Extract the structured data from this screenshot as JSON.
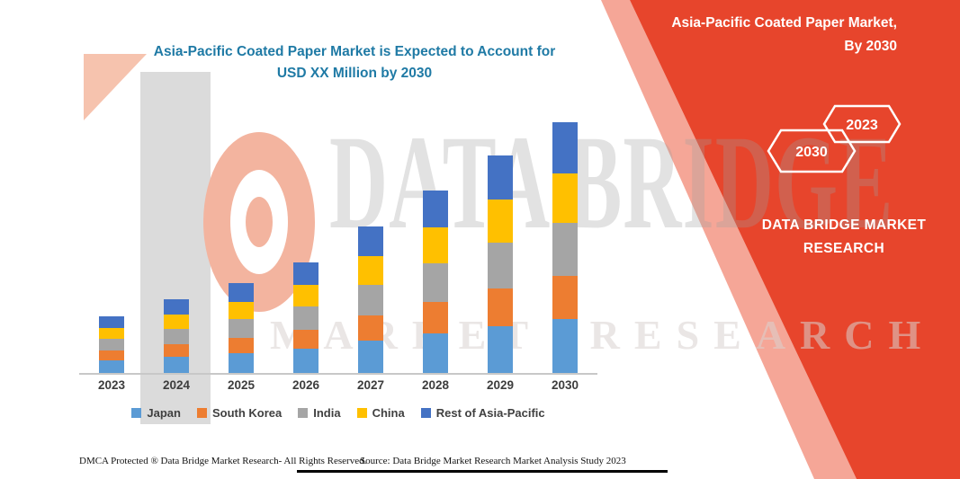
{
  "title": {
    "line1": "Asia-Pacific Coated Paper Market is Expected to Account for",
    "line2": "USD XX Million by 2030",
    "color": "#1f7aa5"
  },
  "banner": {
    "color": "#e7452c",
    "accent_color": "#ef6a52",
    "title_line1": "Asia-Pacific Coated Paper Market,",
    "title_line2": "By 2030",
    "hexagon_left": "2030",
    "hexagon_right": "2023",
    "brand_line1": "DATA BRIDGE MARKET",
    "brand_line2": "RESEARCH"
  },
  "watermark": {
    "line1": "DATA BRIDGE",
    "line2": "MARKET RESEARCH"
  },
  "chart_data": {
    "type": "bar",
    "stacked": true,
    "title": "Asia-Pacific Coated Paper Market is Expected to Account for USD XX Million by 2030",
    "categories": [
      "2023",
      "2024",
      "2025",
      "2026",
      "2027",
      "2028",
      "2029",
      "2030"
    ],
    "series": [
      {
        "name": "Japan",
        "color": "#5B9BD5",
        "values": [
          14,
          18,
          22,
          27,
          36,
          44,
          52,
          60
        ]
      },
      {
        "name": "South Korea",
        "color": "#ED7D31",
        "values": [
          11,
          14,
          17,
          21,
          28,
          35,
          42,
          48
        ]
      },
      {
        "name": "India",
        "color": "#A5A5A5",
        "values": [
          13,
          17,
          21,
          26,
          34,
          43,
          51,
          59
        ]
      },
      {
        "name": "China",
        "color": "#FFC000",
        "values": [
          12,
          16,
          19,
          24,
          32,
          40,
          48,
          55
        ]
      },
      {
        "name": "Rest of Asia-Pacific",
        "color": "#4472C4",
        "values": [
          13,
          17,
          21,
          25,
          33,
          41,
          49,
          57
        ]
      }
    ],
    "xlabel": "",
    "ylabel": "",
    "ylim": [
      0,
      300
    ],
    "value_units": "relative index (actual market values undisclosed: USD XX Million)",
    "legend_position": "bottom",
    "grid": false
  },
  "footer": {
    "left": "DMCA Protected ® Data Bridge Market Research-  All Rights Reserved.",
    "source": "Source: Data Bridge Market Research  Market Analysis Study 2023"
  }
}
